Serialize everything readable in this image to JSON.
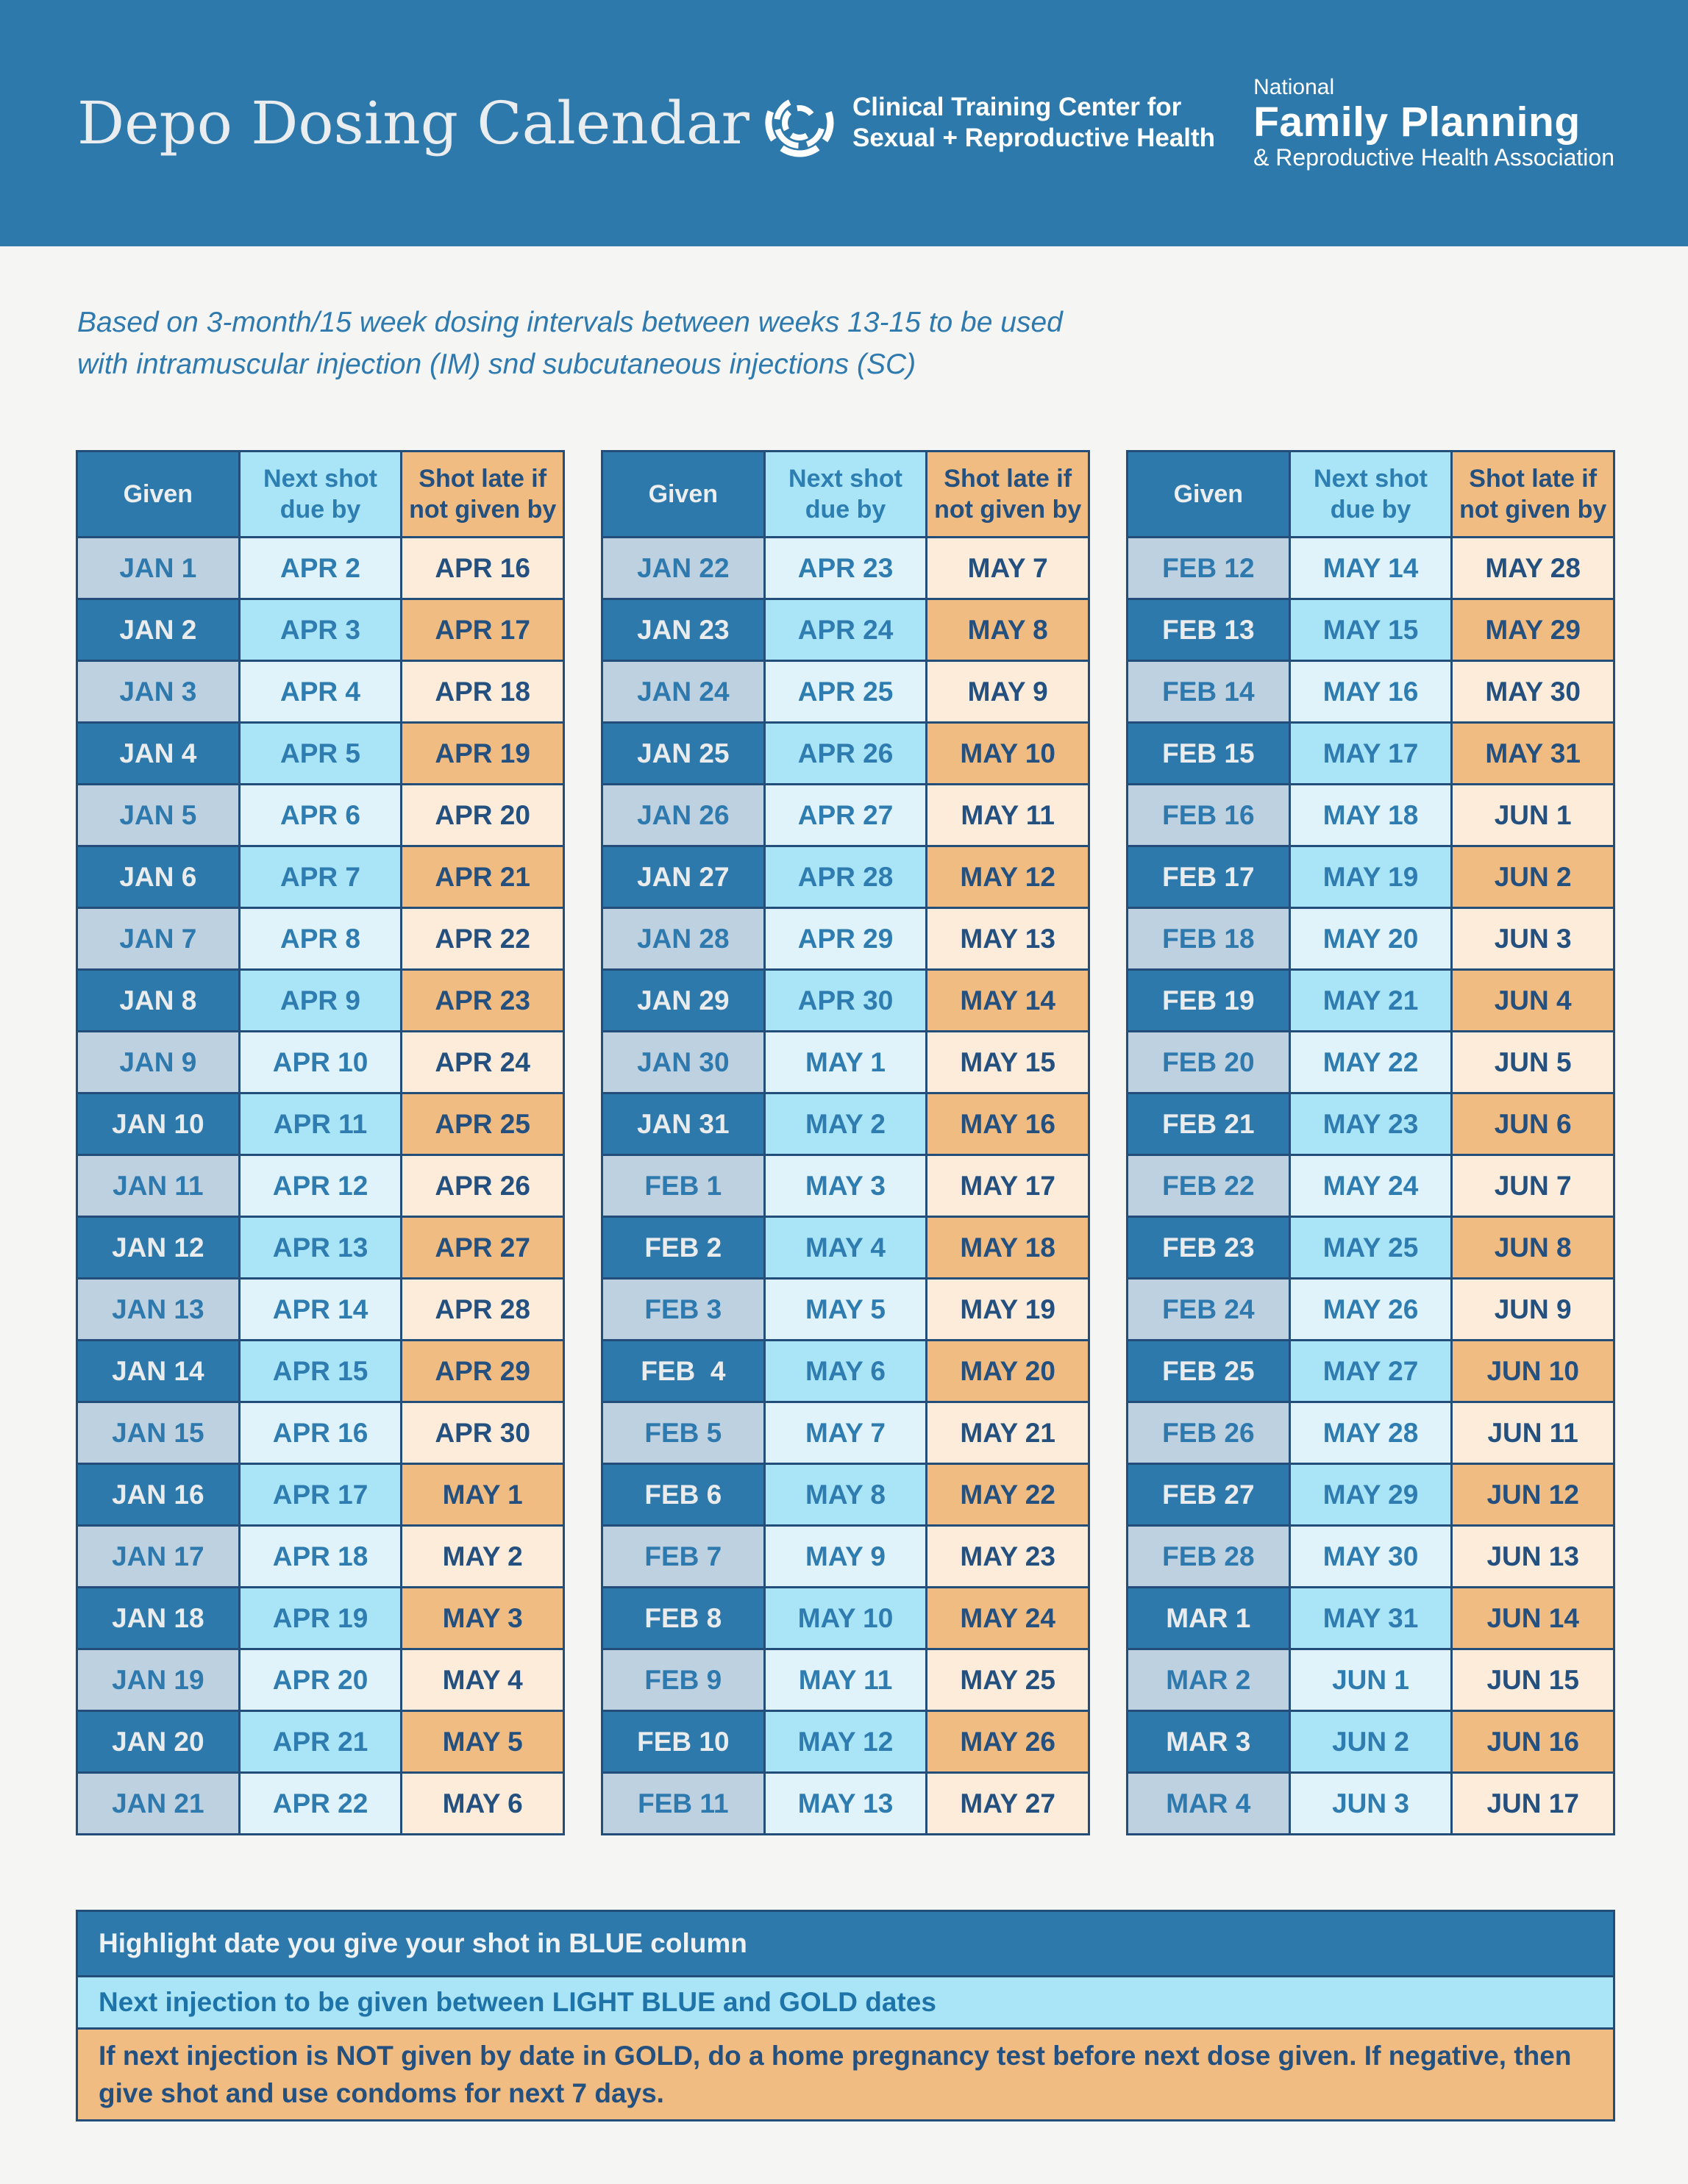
{
  "page": {
    "title": "Depo Dosing Calendar"
  },
  "logos": {
    "ctc": {
      "line1": "Clinical Training Center for",
      "line2": "Sexual + Reproductive Health"
    },
    "nfprha": {
      "line1": "National",
      "line2": "Family Planning",
      "line3": "& Reproductive Health Association"
    }
  },
  "subtitle": {
    "line1": "Based on 3-month/15 week dosing intervals between weeks 13-15 to be used",
    "line2": "with intramuscular injection (IM) snd subcutaneous injections (SC)"
  },
  "column_headers": {
    "given": "Given",
    "next": "Next shot\ndue by",
    "late": "Shot late if\nnot given by"
  },
  "colors": {
    "band_blue": "#2e79ab",
    "navy_border": "#234e7a",
    "steel_light": "#bed1e0",
    "pale_blue": "#e0f3fa",
    "mid_blue": "#a9e4f7",
    "cream": "#fcecd9",
    "gold": "#f0bc82",
    "page_bg": "#f5f5f4",
    "next_text": "#2e7cb0",
    "late_text": "#24507f"
  },
  "tables": [
    {
      "rows": [
        {
          "given": "JAN 1",
          "next": "APR 2",
          "late": "APR 16"
        },
        {
          "given": "JAN 2",
          "next": "APR 3",
          "late": "APR 17"
        },
        {
          "given": "JAN 3",
          "next": "APR 4",
          "late": "APR 18"
        },
        {
          "given": "JAN 4",
          "next": "APR 5",
          "late": "APR 19"
        },
        {
          "given": "JAN 5",
          "next": "APR 6",
          "late": "APR 20"
        },
        {
          "given": "JAN 6",
          "next": "APR 7",
          "late": "APR 21"
        },
        {
          "given": "JAN 7",
          "next": "APR 8",
          "late": "APR 22"
        },
        {
          "given": "JAN 8",
          "next": "APR 9",
          "late": "APR 23"
        },
        {
          "given": "JAN 9",
          "next": "APR 10",
          "late": "APR 24"
        },
        {
          "given": "JAN 10",
          "next": "APR 11",
          "late": "APR 25"
        },
        {
          "given": "JAN 11",
          "next": "APR 12",
          "late": "APR 26"
        },
        {
          "given": "JAN 12",
          "next": "APR 13",
          "late": "APR 27"
        },
        {
          "given": "JAN 13",
          "next": "APR 14",
          "late": "APR 28"
        },
        {
          "given": "JAN 14",
          "next": "APR 15",
          "late": "APR 29"
        },
        {
          "given": "JAN 15",
          "next": "APR 16",
          "late": "APR 30"
        },
        {
          "given": "JAN 16",
          "next": "APR 17",
          "late": "MAY 1"
        },
        {
          "given": "JAN 17",
          "next": "APR 18",
          "late": "MAY 2"
        },
        {
          "given": "JAN 18",
          "next": "APR 19",
          "late": "MAY 3"
        },
        {
          "given": "JAN 19",
          "next": "APR 20",
          "late": "MAY 4"
        },
        {
          "given": "JAN 20",
          "next": "APR 21",
          "late": "MAY 5"
        },
        {
          "given": "JAN 21",
          "next": "APR 22",
          "late": "MAY 6"
        }
      ]
    },
    {
      "rows": [
        {
          "given": "JAN 22",
          "next": "APR 23",
          "late": "MAY 7"
        },
        {
          "given": "JAN 23",
          "next": "APR 24",
          "late": "MAY 8"
        },
        {
          "given": "JAN 24",
          "next": "APR 25",
          "late": "MAY 9"
        },
        {
          "given": "JAN 25",
          "next": "APR 26",
          "late": "MAY 10"
        },
        {
          "given": "JAN 26",
          "next": "APR 27",
          "late": "MAY 11"
        },
        {
          "given": "JAN 27",
          "next": "APR 28",
          "late": "MAY 12"
        },
        {
          "given": "JAN 28",
          "next": "APR 29",
          "late": "MAY 13"
        },
        {
          "given": "JAN 29",
          "next": "APR 30",
          "late": "MAY 14"
        },
        {
          "given": "JAN 30",
          "next": "MAY 1",
          "late": "MAY 15"
        },
        {
          "given": "JAN 31",
          "next": "MAY 2",
          "late": "MAY 16"
        },
        {
          "given": "FEB 1",
          "next": "MAY 3",
          "late": "MAY 17"
        },
        {
          "given": "FEB 2",
          "next": "MAY 4",
          "late": "MAY 18"
        },
        {
          "given": "FEB 3",
          "next": "MAY 5",
          "late": "MAY 19"
        },
        {
          "given": "FEB  4",
          "next": "MAY 6",
          "late": "MAY 20"
        },
        {
          "given": "FEB 5",
          "next": "MAY 7",
          "late": "MAY 21"
        },
        {
          "given": "FEB 6",
          "next": "MAY 8",
          "late": "MAY 22"
        },
        {
          "given": "FEB 7",
          "next": "MAY 9",
          "late": "MAY 23"
        },
        {
          "given": "FEB 8",
          "next": "MAY 10",
          "late": "MAY 24"
        },
        {
          "given": "FEB 9",
          "next": "MAY 11",
          "late": "MAY 25"
        },
        {
          "given": "FEB 10",
          "next": "MAY 12",
          "late": "MAY 26"
        },
        {
          "given": "FEB 11",
          "next": "MAY 13",
          "late": "MAY 27"
        }
      ]
    },
    {
      "rows": [
        {
          "given": "FEB 12",
          "next": "MAY 14",
          "late": "MAY 28"
        },
        {
          "given": "FEB 13",
          "next": "MAY 15",
          "late": "MAY 29"
        },
        {
          "given": "FEB 14",
          "next": "MAY 16",
          "late": "MAY 30"
        },
        {
          "given": "FEB 15",
          "next": "MAY 17",
          "late": "MAY 31"
        },
        {
          "given": "FEB 16",
          "next": "MAY 18",
          "late": "JUN 1"
        },
        {
          "given": "FEB 17",
          "next": "MAY 19",
          "late": "JUN 2"
        },
        {
          "given": "FEB 18",
          "next": "MAY 20",
          "late": "JUN 3"
        },
        {
          "given": "FEB 19",
          "next": "MAY 21",
          "late": "JUN 4"
        },
        {
          "given": "FEB 20",
          "next": "MAY 22",
          "late": "JUN 5"
        },
        {
          "given": "FEB 21",
          "next": "MAY 23",
          "late": "JUN 6"
        },
        {
          "given": "FEB 22",
          "next": "MAY 24",
          "late": "JUN 7"
        },
        {
          "given": "FEB 23",
          "next": "MAY 25",
          "late": "JUN 8"
        },
        {
          "given": "FEB 24",
          "next": "MAY 26",
          "late": "JUN 9"
        },
        {
          "given": "FEB 25",
          "next": "MAY 27",
          "late": "JUN 10"
        },
        {
          "given": "FEB 26",
          "next": "MAY 28",
          "late": "JUN 11"
        },
        {
          "given": "FEB 27",
          "next": "MAY 29",
          "late": "JUN 12"
        },
        {
          "given": "FEB 28",
          "next": "MAY 30",
          "late": "JUN 13"
        },
        {
          "given": "MAR 1",
          "next": "MAY 31",
          "late": "JUN 14"
        },
        {
          "given": "MAR 2",
          "next": "JUN 1",
          "late": "JUN 15"
        },
        {
          "given": "MAR 3",
          "next": "JUN 2",
          "late": "JUN 16"
        },
        {
          "given": "MAR 4",
          "next": "JUN 3",
          "late": "JUN 17"
        }
      ]
    }
  ],
  "legend": {
    "note1": "Highlight date you give your shot in BLUE column",
    "note2": "Next injection to be given between LIGHT BLUE and GOLD dates",
    "note3": "If next injection is NOT given by date in GOLD, do a home pregnancy test before next dose given. If negative, then give shot and use condoms for next 7 days."
  }
}
